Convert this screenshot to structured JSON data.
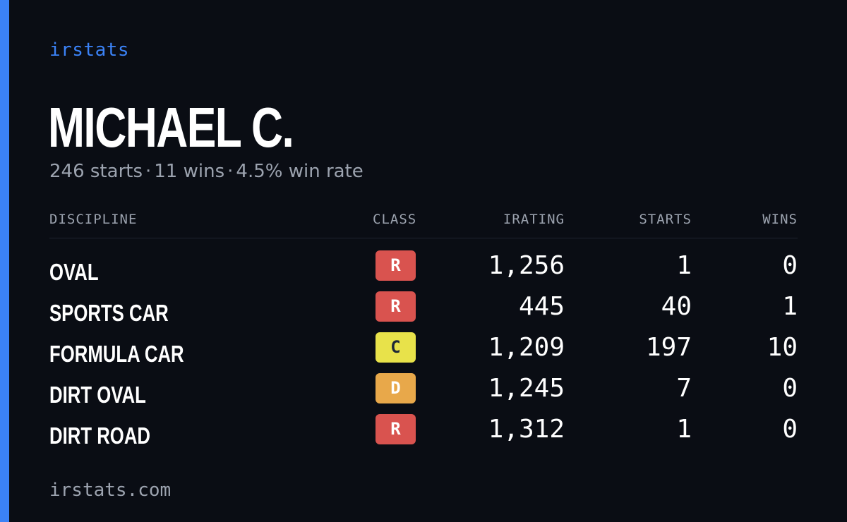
{
  "brand": "irstats",
  "player": {
    "name": "MICHAEL C.",
    "starts_text": "246 starts",
    "wins_text": "11 wins",
    "winrate_text": "4.5% win rate",
    "separator": "·"
  },
  "table": {
    "headers": {
      "discipline": "DISCIPLINE",
      "class": "CLASS",
      "irating": "IRATING",
      "starts": "STARTS",
      "wins": "WINS"
    },
    "rows": [
      {
        "discipline": "OVAL",
        "class": "R",
        "irating": "1,256",
        "starts": "1",
        "wins": "0"
      },
      {
        "discipline": "SPORTS CAR",
        "class": "R",
        "irating": "445",
        "starts": "40",
        "wins": "1"
      },
      {
        "discipline": "FORMULA CAR",
        "class": "C",
        "irating": "1,209",
        "starts": "197",
        "wins": "10"
      },
      {
        "discipline": "DIRT OVAL",
        "class": "D",
        "irating": "1,245",
        "starts": "7",
        "wins": "0"
      },
      {
        "discipline": "DIRT ROAD",
        "class": "R",
        "irating": "1,312",
        "starts": "1",
        "wins": "0"
      }
    ]
  },
  "colors": {
    "accent": "#3b82f6",
    "background": "#0a0d14",
    "class_R": "#d9534f",
    "class_C": "#e8e24a",
    "class_D": "#e8a84a",
    "muted_text": "#9ca3af"
  },
  "footer": "irstats.com"
}
